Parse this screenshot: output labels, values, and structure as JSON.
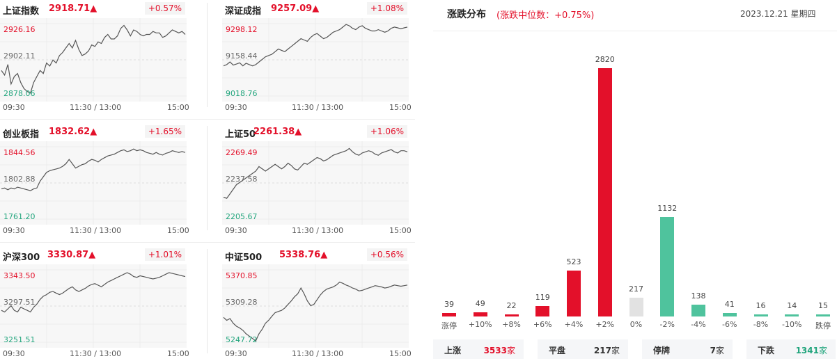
{
  "colors": {
    "up": "#e3102a",
    "down": "#4fc39d",
    "flat": "#e2e2e2",
    "line": "#555555"
  },
  "indices": [
    {
      "name": "上证指数",
      "value": "2918.71▲",
      "change": "+0.57%",
      "y_high": "2926.16",
      "y_mid": "2902.11",
      "y_low": "2878.06",
      "x_labels": [
        "09:30",
        "11:30 / 13:00",
        "15:00"
      ],
      "series": [
        2895,
        2892,
        2899,
        2886,
        2891,
        2893,
        2887,
        2883,
        2881,
        2880,
        2887,
        2891,
        2895,
        2893,
        2900,
        2898,
        2902,
        2900,
        2905,
        2907,
        2910,
        2913,
        2910,
        2915,
        2909,
        2905,
        2906,
        2908,
        2912,
        2911,
        2914,
        2913,
        2917,
        2919,
        2916,
        2916,
        2918,
        2923,
        2925,
        2922,
        2918,
        2922,
        2921,
        2919,
        2918,
        2919,
        2919,
        2921,
        2920,
        2920,
        2917,
        2918,
        2920,
        2922,
        2921,
        2920,
        2921,
        2919
      ]
    },
    {
      "name": "深证成指",
      "value": "9257.09▲",
      "change": "+1.08%",
      "y_high": "9298.12",
      "y_mid": "9158.44",
      "y_low": "9018.76",
      "x_labels": [
        "09:30",
        "11:30 / 13:00",
        "15:00"
      ],
      "series": [
        9135,
        9140,
        9150,
        9138,
        9142,
        9147,
        9135,
        9145,
        9140,
        9135,
        9140,
        9150,
        9160,
        9170,
        9175,
        9180,
        9190,
        9200,
        9195,
        9190,
        9200,
        9210,
        9220,
        9230,
        9240,
        9235,
        9230,
        9245,
        9255,
        9260,
        9250,
        9240,
        9245,
        9255,
        9265,
        9270,
        9275,
        9285,
        9295,
        9290,
        9280,
        9275,
        9285,
        9290,
        9280,
        9275,
        9270,
        9270,
        9275,
        9270,
        9265,
        9270,
        9280,
        9285,
        9282,
        9278,
        9282,
        9285
      ]
    },
    {
      "name": "创业板指",
      "value": "1832.62▲",
      "change": "+1.65%",
      "y_high": "1844.56",
      "y_mid": "1802.88",
      "y_low": "1761.20",
      "x_labels": [
        "09:30",
        "11:30 / 13:00",
        "15:00"
      ],
      "series": [
        1796,
        1797,
        1795,
        1797,
        1796,
        1798,
        1797,
        1796,
        1795,
        1794,
        1796,
        1797,
        1805,
        1810,
        1815,
        1817,
        1818,
        1819,
        1820,
        1822,
        1825,
        1830,
        1825,
        1820,
        1822,
        1824,
        1825,
        1828,
        1830,
        1829,
        1827,
        1830,
        1832,
        1834,
        1835,
        1836,
        1838,
        1840,
        1841,
        1839,
        1840,
        1842,
        1840,
        1841,
        1840,
        1838,
        1837,
        1836,
        1838,
        1836,
        1835,
        1837,
        1838,
        1840,
        1839,
        1838,
        1839,
        1838
      ]
    },
    {
      "name": "上证50",
      "value": "2261.38▲",
      "change": "+1.06%",
      "y_high": "2269.49",
      "y_mid": "2237.58",
      "y_low": "2205.67",
      "x_labels": [
        "09:30",
        "11:30 / 13:00",
        "15:00"
      ],
      "series": [
        2225,
        2224,
        2228,
        2232,
        2236,
        2238,
        2240,
        2242,
        2244,
        2246,
        2248,
        2252,
        2250,
        2248,
        2250,
        2252,
        2254,
        2252,
        2250,
        2252,
        2255,
        2253,
        2250,
        2249,
        2252,
        2255,
        2254,
        2256,
        2258,
        2260,
        2259,
        2257,
        2258,
        2260,
        2262,
        2263,
        2264,
        2265,
        2266,
        2268,
        2265,
        2263,
        2262,
        2264,
        2265,
        2266,
        2265,
        2263,
        2262,
        2264,
        2265,
        2266,
        2267,
        2265,
        2264,
        2266,
        2266,
        2265
      ]
    },
    {
      "name": "沪深300",
      "value": "3330.87▲",
      "change": "+1.01%",
      "y_high": "3343.50",
      "y_mid": "3297.51",
      "y_low": "3251.51",
      "x_labels": [
        "09:30",
        "11:30 / 13:00",
        "15:00"
      ],
      "series": [
        3292,
        3290,
        3294,
        3298,
        3292,
        3290,
        3296,
        3294,
        3292,
        3290,
        3296,
        3300,
        3306,
        3310,
        3312,
        3315,
        3316,
        3314,
        3312,
        3314,
        3317,
        3320,
        3322,
        3318,
        3316,
        3318,
        3320,
        3323,
        3325,
        3326,
        3324,
        3322,
        3325,
        3328,
        3330,
        3332,
        3334,
        3336,
        3338,
        3340,
        3338,
        3335,
        3334,
        3336,
        3335,
        3334,
        3333,
        3332,
        3333,
        3334,
        3336,
        3338,
        3340,
        3339,
        3338,
        3337,
        3336,
        3335
      ]
    },
    {
      "name": "中证500",
      "value": "5338.76▲",
      "change": "+0.56%",
      "y_high": "5370.85",
      "y_mid": "5309.28",
      "y_low": "5247.72",
      "x_labels": [
        "09:30",
        "11:30 / 13:00",
        "15:00"
      ],
      "series": [
        5290,
        5285,
        5288,
        5280,
        5275,
        5272,
        5268,
        5262,
        5258,
        5254,
        5250,
        5262,
        5270,
        5280,
        5285,
        5292,
        5298,
        5300,
        5302,
        5306,
        5312,
        5318,
        5325,
        5330,
        5340,
        5330,
        5318,
        5310,
        5312,
        5320,
        5328,
        5334,
        5338,
        5340,
        5342,
        5345,
        5350,
        5348,
        5345,
        5343,
        5340,
        5338,
        5335,
        5336,
        5338,
        5340,
        5342,
        5344,
        5343,
        5342,
        5340,
        5341,
        5343,
        5345,
        5344,
        5343,
        5344,
        5345
      ]
    }
  ],
  "distribution": {
    "title": "涨跌分布",
    "subtitle": "(涨跌中位数：+0.75%)",
    "date": "2023.12.21 星期四"
  },
  "chart_data": {
    "type": "bar",
    "categories": [
      "涨停",
      "+10%",
      "+8%",
      "+6%",
      "+4%",
      "+2%",
      "0%",
      "-2%",
      "-4%",
      "-6%",
      "-8%",
      "-10%",
      "跌停"
    ],
    "values": [
      39,
      49,
      22,
      119,
      523,
      2820,
      217,
      1132,
      138,
      41,
      16,
      14,
      15
    ],
    "value_labels": [
      "39",
      "49",
      "22",
      "119",
      "523",
      "2820",
      "217",
      "1132",
      "138",
      "41",
      "16",
      "14",
      "15"
    ],
    "bar_colors": [
      "up",
      "up",
      "up",
      "up",
      "up",
      "up",
      "flat",
      "down",
      "down",
      "down",
      "down",
      "down",
      "down"
    ],
    "ylim": [
      0,
      2820
    ]
  },
  "summary": [
    {
      "label": "上涨",
      "value": "3533",
      "unit": "家",
      "color": "up"
    },
    {
      "label": "平盘",
      "value": "217",
      "unit": "家",
      "color": "neutral"
    },
    {
      "label": "停牌",
      "value": "7",
      "unit": "家",
      "color": "neutral"
    },
    {
      "label": "下跌",
      "value": "1341",
      "unit": "家",
      "color": "down"
    }
  ]
}
